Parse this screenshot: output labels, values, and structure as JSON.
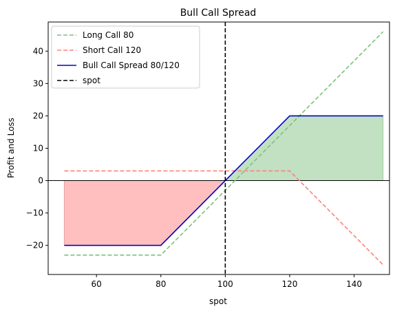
{
  "chart_data": {
    "type": "line",
    "title": "Bull Call Spread",
    "xlabel": "spot",
    "ylabel": "Profit and Loss",
    "xlim": [
      45,
      151
    ],
    "ylim": [
      -29,
      49
    ],
    "xticks": [
      60,
      80,
      100,
      120,
      140
    ],
    "yticks": [
      -20,
      -10,
      0,
      10,
      20,
      30,
      40
    ],
    "grid": false,
    "legend_position": "upper left",
    "series": [
      {
        "name": "Long Call 80",
        "style": "dashed",
        "color": "#7fbf7f",
        "x": [
          50,
          80,
          149
        ],
        "y": [
          -23,
          -23,
          46
        ]
      },
      {
        "name": "Short Call 120",
        "style": "dashed",
        "color": "#ff7f7f",
        "x": [
          50,
          120,
          149
        ],
        "y": [
          3,
          3,
          -26
        ]
      },
      {
        "name": "Bull Call Spread 80/120",
        "style": "solid",
        "color": "#0000cc",
        "x": [
          50,
          80,
          120,
          149
        ],
        "y": [
          -20,
          -20,
          20,
          20
        ]
      },
      {
        "name": "spot",
        "style": "dashed",
        "color": "#000000",
        "vline_x": 100
      }
    ],
    "fills": [
      {
        "region": "profit",
        "color": "#c2e0c2",
        "x_from": 100,
        "x_to": 149
      },
      {
        "region": "loss",
        "color": "#ffbfbf",
        "x_from": 50,
        "x_to": 100
      }
    ],
    "zero_line": 0
  }
}
